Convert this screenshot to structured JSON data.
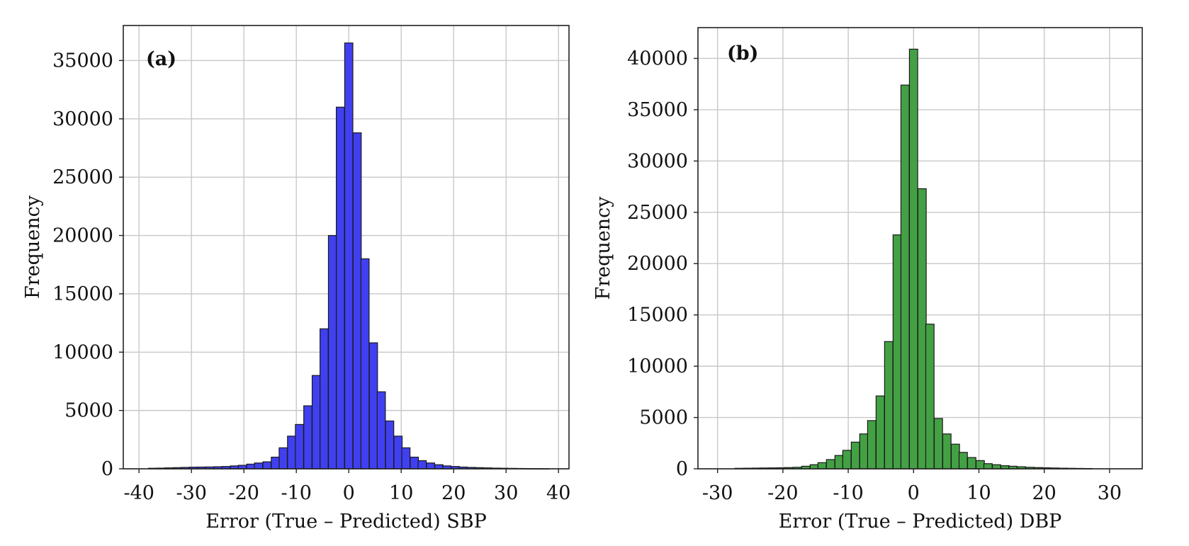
{
  "chart_data": [
    {
      "type": "bar",
      "panel_label": "(a)",
      "xlabel": "Error (True – Predicted) SBP",
      "ylabel": "Frequency",
      "xlim": [
        -43,
        42
      ],
      "ylim": [
        0,
        38000
      ],
      "xticks": [
        -40,
        -30,
        -20,
        -10,
        0,
        10,
        20,
        30,
        40
      ],
      "yticks": [
        0,
        5000,
        10000,
        15000,
        20000,
        25000,
        30000,
        35000
      ],
      "grid": true,
      "bar_color": "#4040f0",
      "bin_width": 1.56,
      "x": [
        -37.4,
        -35.8,
        -34.3,
        -32.7,
        -31.2,
        -29.6,
        -28.1,
        -26.5,
        -24.9,
        -23.4,
        -21.8,
        -20.3,
        -18.7,
        -17.2,
        -15.6,
        -14.0,
        -12.5,
        -10.9,
        -9.4,
        -7.8,
        -6.2,
        -4.7,
        -3.1,
        -1.6,
        0.0,
        1.6,
        3.1,
        4.7,
        6.2,
        7.8,
        9.4,
        10.9,
        12.5,
        14.0,
        15.6,
        17.2,
        18.7,
        20.3,
        21.8,
        23.4,
        24.9,
        26.5,
        28.1,
        29.6,
        31.2,
        32.7,
        34.3,
        35.8,
        37.4
      ],
      "values": [
        50,
        60,
        80,
        100,
        120,
        140,
        150,
        160,
        180,
        200,
        250,
        300,
        400,
        500,
        600,
        1000,
        1800,
        2800,
        3800,
        5400,
        8000,
        12000,
        20000,
        31000,
        36500,
        28800,
        18000,
        10800,
        6600,
        4100,
        2800,
        1800,
        1000,
        700,
        500,
        350,
        250,
        200,
        150,
        120,
        100,
        80,
        60,
        50,
        40,
        30,
        20,
        10,
        5
      ]
    },
    {
      "type": "bar",
      "panel_label": "(b)",
      "xlabel": "Error (True – Predicted) DBP",
      "ylabel": "Frequency",
      "xlim": [
        -33,
        35
      ],
      "ylim": [
        0,
        43000
      ],
      "xticks": [
        -30,
        -20,
        -10,
        0,
        10,
        20,
        30
      ],
      "yticks": [
        0,
        5000,
        10000,
        15000,
        20000,
        25000,
        30000,
        35000,
        40000
      ],
      "grid": true,
      "bar_color": "#44a044",
      "bin_width": 1.27,
      "x": [
        -26.7,
        -25.4,
        -24.1,
        -22.9,
        -21.6,
        -20.3,
        -19.1,
        -17.8,
        -16.5,
        -15.2,
        -14.0,
        -12.7,
        -11.4,
        -10.2,
        -8.9,
        -7.6,
        -6.4,
        -5.1,
        -3.8,
        -2.5,
        -1.3,
        0.0,
        1.3,
        2.5,
        3.8,
        5.1,
        6.4,
        7.6,
        8.9,
        10.2,
        11.4,
        12.7,
        14.0,
        15.2,
        16.5,
        17.8,
        19.1,
        20.3,
        21.6,
        22.9,
        24.1,
        25.4,
        26.7
      ],
      "values": [
        50,
        60,
        70,
        80,
        90,
        100,
        120,
        150,
        250,
        400,
        600,
        900,
        1300,
        1800,
        2600,
        3400,
        4700,
        7100,
        12400,
        22800,
        37400,
        40900,
        27300,
        14100,
        4900,
        3400,
        2400,
        1600,
        1100,
        800,
        500,
        400,
        300,
        250,
        200,
        150,
        120,
        100,
        80,
        60,
        50,
        40,
        30
      ]
    }
  ]
}
